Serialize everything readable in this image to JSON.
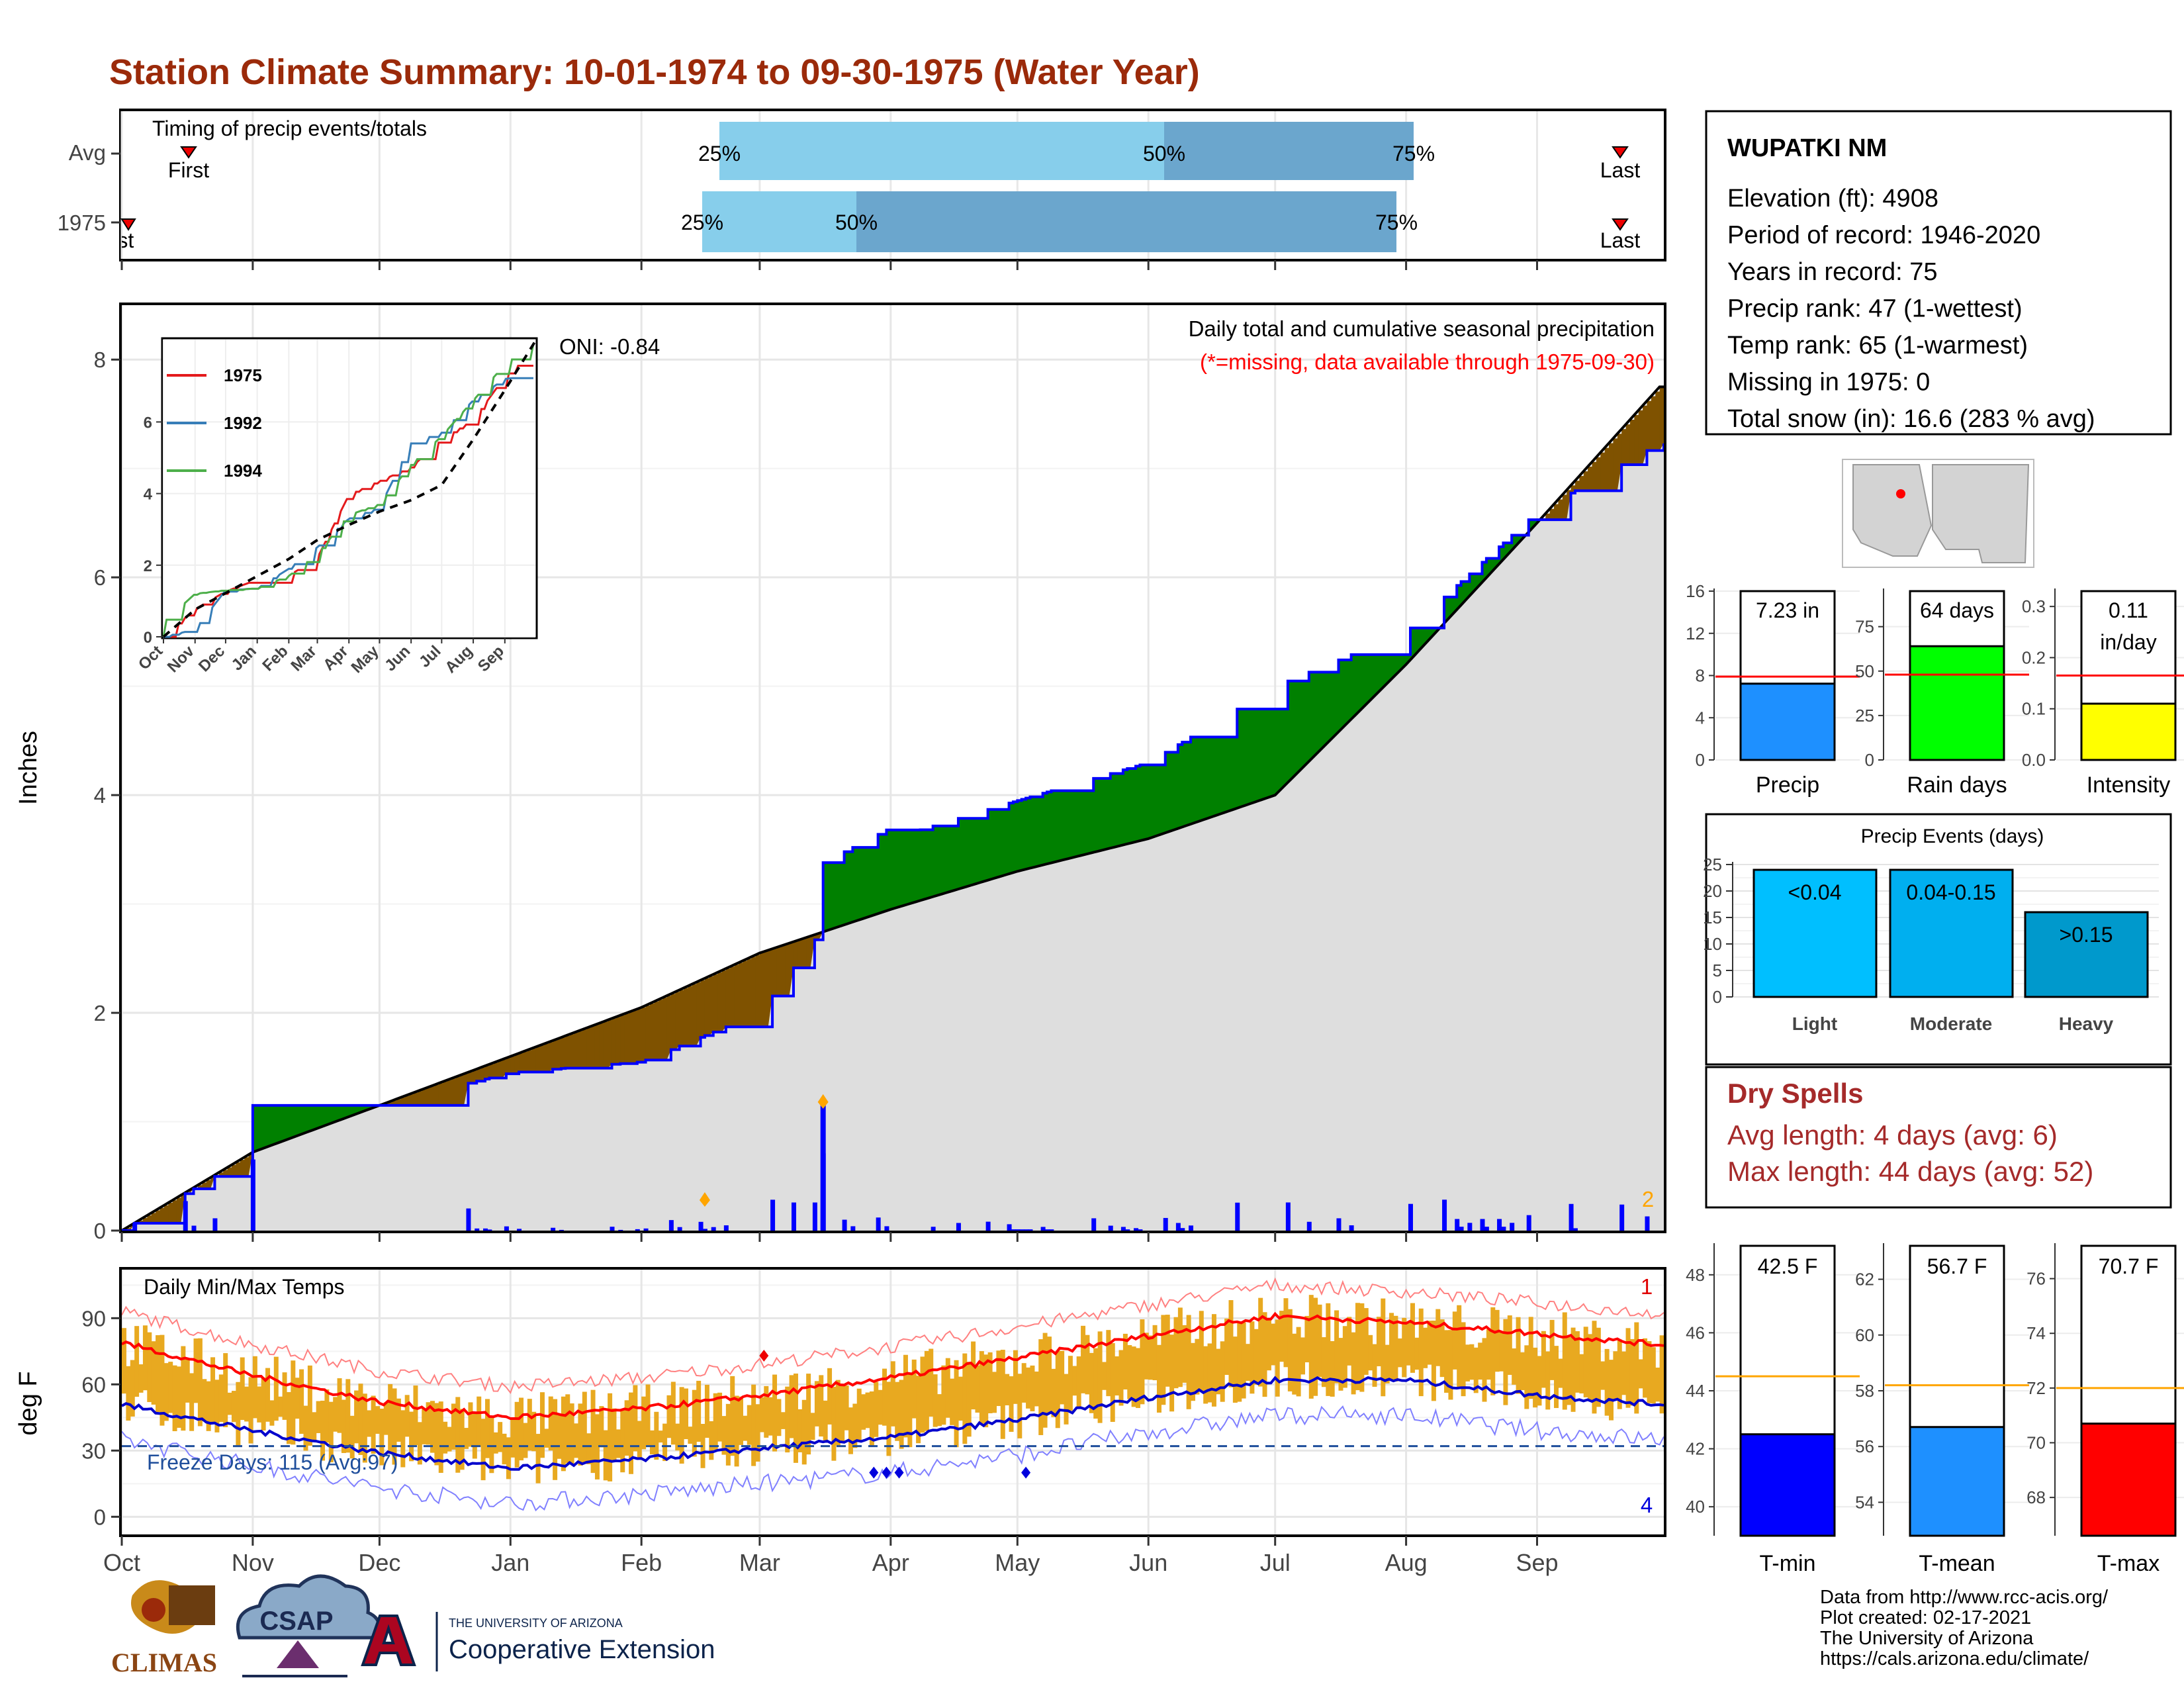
{
  "title": "Station Climate Summary: 10-01-1974 to 09-30-1975 (Water Year)",
  "timing": {
    "heading": "Timing of precip events/totals",
    "rows": [
      {
        "label": "Avg",
        "first_label": "First",
        "last_label": "Last",
        "q25": "25%",
        "q50": "50%",
        "q75": "75%"
      },
      {
        "label": "1975",
        "first_label": "First",
        "last_label": "Last",
        "q25": "25%",
        "q50": "50%",
        "q75": "75%"
      }
    ]
  },
  "main_plot": {
    "ylabel": "Inches",
    "yticks": [
      "0",
      "2",
      "4",
      "6",
      "8"
    ],
    "annotation": "Daily total and cumulative seasonal precipitation",
    "missing_note": "(*=missing, data available through 1975-09-30)",
    "oni": "ONI: -0.84",
    "extreme_count": "2"
  },
  "inset": {
    "legend": [
      "1975",
      "1992",
      "1994"
    ],
    "yticks": [
      "0",
      "2",
      "4",
      "6"
    ],
    "xticks": [
      "Oct",
      "Nov",
      "Dec",
      "Jan",
      "Feb",
      "Mar",
      "Apr",
      "May",
      "Jun",
      "Jul",
      "Aug",
      "Sep"
    ]
  },
  "temp_plot": {
    "ylabel": "deg F",
    "title": "Daily Min/Max Temps",
    "yticks": [
      "0",
      "30",
      "60",
      "90"
    ],
    "freeze": "Freeze Days: 115 (Avg:97)",
    "count_max": "1",
    "count_min": "4"
  },
  "xticks": [
    "Oct",
    "Nov",
    "Dec",
    "Jan",
    "Feb",
    "Mar",
    "Apr",
    "May",
    "Jun",
    "Jul",
    "Aug",
    "Sep"
  ],
  "station": {
    "name": "WUPATKI NM",
    "lines": [
      "Elevation (ft): 4908",
      "Period of record: 1946-2020",
      "Years in record: 75",
      "Precip rank: 47 (1-wettest)",
      "Temp rank: 65 (1-warmest)",
      "Missing in 1975: 0",
      "Total snow (in): 16.6 (283 % avg)"
    ]
  },
  "stat_bars": [
    {
      "label": "Precip",
      "value_label": "7.23 in",
      "yticks": [
        "0",
        "4",
        "8",
        "12",
        "16"
      ]
    },
    {
      "label": "Rain days",
      "value_label": "64 days",
      "yticks": [
        "0",
        "25",
        "50",
        "75"
      ]
    },
    {
      "label": "Intensity",
      "value_label": "0.11 in/day",
      "yticks": [
        "0.0",
        "0.1",
        "0.2",
        "0.3"
      ]
    }
  ],
  "events": {
    "title": "Precip Events (days)",
    "yticks": [
      "0",
      "5",
      "10",
      "15",
      "20",
      "25"
    ],
    "bars": [
      {
        "label": "Light",
        "bin": "<0.04"
      },
      {
        "label": "Moderate",
        "bin": "0.04-0.15"
      },
      {
        "label": "Heavy",
        "bin": ">0.15"
      }
    ]
  },
  "dry_spells": {
    "title": "Dry Spells",
    "avg": "Avg length: 4 days (avg: 6)",
    "max": "Max length: 44 days (avg: 52)"
  },
  "temp_bars": [
    {
      "label": "T-min",
      "value_label": "42.5 F",
      "yticks": [
        "40",
        "42",
        "44",
        "46",
        "48"
      ]
    },
    {
      "label": "T-mean",
      "value_label": "56.7 F",
      "yticks": [
        "54",
        "56",
        "58",
        "60",
        "62"
      ]
    },
    {
      "label": "T-max",
      "value_label": "70.7 F",
      "yticks": [
        "68",
        "70",
        "72",
        "74",
        "76"
      ]
    }
  ],
  "credits": [
    "Data from http://www.rcc-acis.org/",
    "Plot created: 02-17-2021",
    "The University of Arizona",
    "https://cals.arizona.edu/climate/"
  ],
  "logos": {
    "climas": "CLIMAS",
    "csap": "CSAP",
    "ua_small": "THE UNIVERSITY OF ARIZONA",
    "ua_big": "Cooperative Extension"
  },
  "colors": {
    "title": "#9b2a0a",
    "above": "#008000",
    "below": "#7f5200",
    "daily": "#0000ff",
    "bar_fill": "#e8a920",
    "max_line": "#ff0000",
    "min_line": "#0000cc",
    "dry": "#a52a2a"
  },
  "chart_data": [
    {
      "type": "line",
      "title": "Daily total and cumulative seasonal precipitation",
      "ylabel": "Inches",
      "x": [
        "Oct",
        "Nov",
        "Dec",
        "Jan",
        "Feb",
        "Mar",
        "Apr",
        "May",
        "Jun",
        "Jul",
        "Aug",
        "Sep",
        "Sep 30"
      ],
      "series": [
        {
          "name": "1975",
          "values": [
            0.0,
            0.7,
            1.15,
            1.45,
            1.55,
            2.0,
            3.6,
            3.95,
            4.3,
            5.0,
            5.5,
            6.6,
            7.23
          ]
        },
        {
          "name": "Avg",
          "values": [
            0.0,
            0.72,
            1.15,
            1.6,
            2.05,
            2.55,
            2.95,
            3.3,
            3.6,
            4.0,
            5.2,
            6.5,
            7.75
          ]
        }
      ],
      "ylim": [
        0,
        8.5
      ],
      "daily_peak": {
        "date": "Mar 16",
        "value": 1.18
      }
    },
    {
      "type": "line",
      "title": "Daily Min/Max Temps",
      "ylabel": "deg F",
      "x": [
        "Oct",
        "Nov",
        "Dec",
        "Jan",
        "Feb",
        "Mar",
        "Apr",
        "May",
        "Jun",
        "Jul",
        "Aug",
        "Sep",
        "Sep 30"
      ],
      "series": [
        {
          "name": "Avg max",
          "values": [
            79,
            64,
            52,
            45,
            49,
            55,
            63,
            72,
            82,
            91,
            88,
            83,
            78
          ]
        },
        {
          "name": "Avg min",
          "values": [
            51,
            39,
            29,
            22,
            26,
            31,
            36,
            44,
            54,
            62,
            62,
            55,
            51
          ]
        }
      ],
      "ylim": [
        -8,
        112
      ]
    },
    {
      "type": "bar",
      "categories": [
        "Precip",
        "Rain days",
        "Intensity"
      ],
      "values": [
        7.23,
        64,
        0.11
      ],
      "averages": [
        7.9,
        48,
        0.165
      ]
    },
    {
      "type": "bar",
      "title": "Precip Events (days)",
      "categories": [
        "Light",
        "Moderate",
        "Heavy"
      ],
      "values": [
        24,
        24,
        16
      ],
      "ylim": [
        0,
        25
      ]
    },
    {
      "type": "bar",
      "categories": [
        "T-min",
        "T-mean",
        "T-max"
      ],
      "values": [
        42.5,
        56.7,
        70.7
      ],
      "averages": [
        44.5,
        58.2,
        72.0
      ]
    }
  ]
}
